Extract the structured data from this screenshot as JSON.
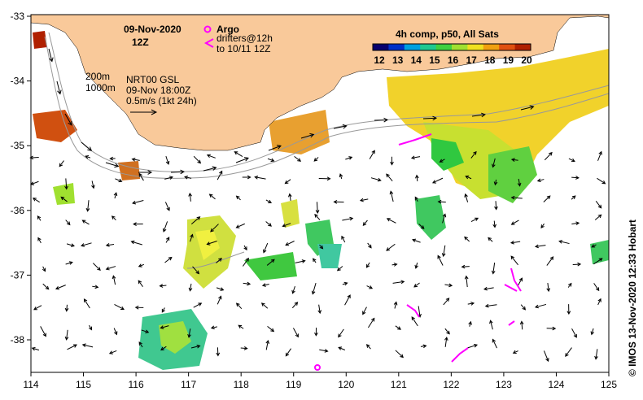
{
  "title": {
    "date": "09-Nov-2020",
    "hour": "12Z"
  },
  "legend": {
    "argo_label": "Argo",
    "drifters_line1": "drifters@12h",
    "drifters_line2": "to 10/11 12Z",
    "colorbar_title": "4h comp, p50, All Sats",
    "colorbar_ticks": [
      "12",
      "13",
      "14",
      "15",
      "16",
      "17",
      "18",
      "19",
      "20"
    ],
    "colorbar_colors": [
      "#08006e",
      "#0030c8",
      "#00a0e0",
      "#20c890",
      "#40d040",
      "#a0e030",
      "#f0e020",
      "#f0a010",
      "#e05010",
      "#b02000"
    ]
  },
  "info": {
    "contour_200": "200m",
    "contour_1000": "1000m",
    "model": "NRT00 GSL",
    "valid_time": "09-Nov 18:00Z",
    "scale": "0.5m/s (1kt 24h)"
  },
  "axes": {
    "x_ticks": [
      "114",
      "115",
      "116",
      "117",
      "118",
      "119",
      "120",
      "121",
      "122",
      "123",
      "124",
      "125"
    ],
    "y_ticks": [
      "-33",
      "-34",
      "-35",
      "-36",
      "-37",
      "-38"
    ]
  },
  "credit": "© IMOS 13-Nov-2020 12:33 Hobart",
  "colors": {
    "land": "#f9c99a",
    "argo": "#ff00ff",
    "drifter": "#ff00ff"
  }
}
